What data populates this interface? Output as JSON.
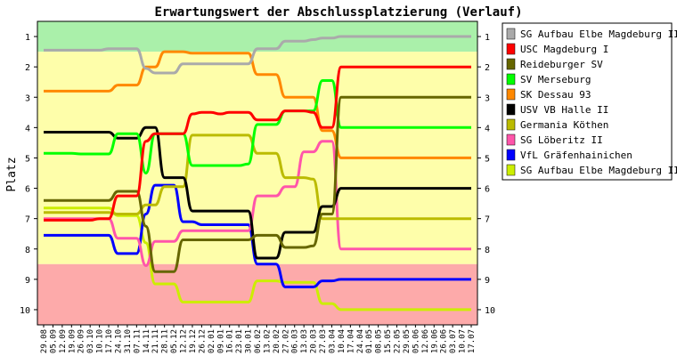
{
  "chart_data": {
    "type": "line",
    "title": "Erwartungswert der Abschlussplatzierung (Verlauf)",
    "ylabel": "Platz",
    "ylim": [
      0.5,
      10.5
    ],
    "y_inverted": true,
    "yticks": [
      1,
      2,
      3,
      4,
      5,
      6,
      7,
      8,
      9,
      10
    ],
    "bands": [
      {
        "from": 0.5,
        "to": 1.5,
        "color": "#aaf0aa"
      },
      {
        "from": 1.5,
        "to": 8.5,
        "color": "#fefeaa"
      },
      {
        "from": 8.5,
        "to": 10.5,
        "color": "#fdaaaa"
      }
    ],
    "categories": [
      "29.08",
      "05.09",
      "12.09",
      "19.09",
      "26.09",
      "03.10",
      "10.10",
      "17.10",
      "24.10",
      "31.10",
      "07.11",
      "14.11",
      "21.11",
      "28.11",
      "05.12",
      "12.12",
      "19.12",
      "26.12",
      "02.01",
      "09.01",
      "16.01",
      "23.01",
      "30.01",
      "06.02",
      "13.02",
      "20.02",
      "27.02",
      "06.03",
      "13.03",
      "20.03",
      "27.03",
      "03.04",
      "10.04",
      "17.04",
      "24.04",
      "01.05",
      "08.05",
      "15.05",
      "22.05",
      "29.05",
      "05.06",
      "12.06",
      "19.06",
      "26.06",
      "03.07",
      "10.07",
      "17.07"
    ],
    "legend": {
      "position": "right"
    },
    "series": [
      {
        "name": "SG Aufbau Elbe Magdeburg II",
        "color": "#aaaaaa",
        "values": [
          1.45,
          1.45,
          1.45,
          1.45,
          1.45,
          1.45,
          1.45,
          1.4,
          1.4,
          1.4,
          1.4,
          2.05,
          2.2,
          2.2,
          2.2,
          1.9,
          1.9,
          1.9,
          1.9,
          1.9,
          1.9,
          1.9,
          1.9,
          1.4,
          1.4,
          1.4,
          1.15,
          1.15,
          1.15,
          1.1,
          1.05,
          1.05,
          1,
          1,
          1,
          1,
          1,
          1,
          1,
          1,
          1,
          1,
          1,
          1,
          1,
          1,
          1
        ]
      },
      {
        "name": "USC Magdeburg I",
        "color": "#ff0000",
        "values": [
          7.05,
          7.05,
          7.05,
          7.05,
          7.05,
          7.05,
          7.0,
          7.0,
          6.25,
          6.25,
          6.25,
          4.45,
          4.2,
          4.2,
          4.2,
          4.2,
          3.55,
          3.5,
          3.5,
          3.55,
          3.5,
          3.5,
          3.5,
          3.75,
          3.75,
          3.75,
          3.45,
          3.45,
          3.45,
          3.5,
          4.0,
          4.0,
          2.0,
          2.0,
          2.0,
          2.0,
          2.0,
          2.0,
          2.0,
          2.0,
          2.0,
          2.0,
          2.0,
          2.0,
          2.0,
          2.0,
          2.0
        ]
      },
      {
        "name": "Reideburger SV",
        "color": "#666600",
        "values": [
          6.4,
          6.4,
          6.4,
          6.4,
          6.4,
          6.4,
          6.4,
          6.4,
          6.1,
          6.1,
          6.1,
          7.25,
          8.75,
          8.75,
          8.75,
          7.7,
          7.7,
          7.7,
          7.7,
          7.7,
          7.7,
          7.7,
          7.7,
          7.55,
          7.55,
          7.55,
          7.95,
          7.95,
          7.95,
          7.9,
          6.85,
          6.85,
          3.0,
          3.0,
          3.0,
          3.0,
          3.0,
          3.0,
          3.0,
          3.0,
          3.0,
          3.0,
          3.0,
          3.0,
          3.0,
          3.0,
          3.0
        ]
      },
      {
        "name": "SV Merseburg",
        "color": "#00ff00",
        "values": [
          4.85,
          4.85,
          4.85,
          4.85,
          4.87,
          4.87,
          4.87,
          4.87,
          4.2,
          4.2,
          4.2,
          5.5,
          4.2,
          4.2,
          4.2,
          4.2,
          5.25,
          5.25,
          5.25,
          5.25,
          5.25,
          5.25,
          5.2,
          3.9,
          3.9,
          3.9,
          3.45,
          3.45,
          3.45,
          3.45,
          2.45,
          2.45,
          4.0,
          4.0,
          4.0,
          4.0,
          4.0,
          4.0,
          4.0,
          4.0,
          4.0,
          4.0,
          4.0,
          4.0,
          4.0,
          4.0,
          4.0
        ]
      },
      {
        "name": "SK Dessau 93",
        "color": "#ff8800",
        "values": [
          2.8,
          2.8,
          2.8,
          2.8,
          2.8,
          2.8,
          2.8,
          2.8,
          2.6,
          2.6,
          2.6,
          2.0,
          2.0,
          1.5,
          1.5,
          1.5,
          1.55,
          1.55,
          1.55,
          1.55,
          1.55,
          1.55,
          1.55,
          2.25,
          2.25,
          2.25,
          3.0,
          3.0,
          3.0,
          3.0,
          4.1,
          4.1,
          5.0,
          5.0,
          5.0,
          5.0,
          5.0,
          5.0,
          5.0,
          5.0,
          5.0,
          5.0,
          5.0,
          5.0,
          5.0,
          5.0,
          5.0
        ]
      },
      {
        "name": "USV VB Halle II",
        "color": "#000000",
        "values": [
          4.15,
          4.15,
          4.15,
          4.15,
          4.15,
          4.15,
          4.15,
          4.15,
          4.35,
          4.35,
          4.35,
          4.0,
          4.0,
          5.65,
          5.65,
          5.65,
          6.75,
          6.75,
          6.75,
          6.75,
          6.75,
          6.75,
          6.75,
          8.3,
          8.3,
          8.3,
          7.45,
          7.45,
          7.45,
          7.45,
          6.6,
          6.6,
          6.0,
          6.0,
          6.0,
          6.0,
          6.0,
          6.0,
          6.0,
          6.0,
          6.0,
          6.0,
          6.0,
          6.0,
          6.0,
          6.0,
          6.0
        ]
      },
      {
        "name": "Germania Köthen",
        "color": "#bbbb00",
        "values": [
          6.8,
          6.8,
          6.8,
          6.8,
          6.8,
          6.8,
          6.8,
          6.8,
          6.85,
          6.85,
          6.85,
          6.55,
          6.55,
          5.95,
          5.95,
          5.95,
          4.25,
          4.25,
          4.25,
          4.25,
          4.25,
          4.25,
          4.25,
          4.85,
          4.85,
          4.85,
          5.65,
          5.65,
          5.65,
          5.7,
          7.0,
          7.0,
          7.0,
          7.0,
          7.0,
          7.0,
          7.0,
          7.0,
          7.0,
          7.0,
          7.0,
          7.0,
          7.0,
          7.0,
          7.0,
          7.0,
          7.0
        ]
      },
      {
        "name": "SG Löberitz II",
        "color": "#ff55aa",
        "values": [
          7.0,
          7.0,
          7.0,
          7.0,
          7.0,
          7.0,
          7.0,
          7.0,
          7.65,
          7.65,
          7.65,
          8.55,
          7.75,
          7.75,
          7.75,
          7.4,
          7.4,
          7.4,
          7.4,
          7.4,
          7.4,
          7.4,
          7.4,
          6.25,
          6.25,
          6.25,
          5.95,
          5.95,
          4.8,
          4.8,
          4.45,
          4.45,
          8.0,
          8.0,
          8.0,
          8.0,
          8.0,
          8.0,
          8.0,
          8.0,
          8.0,
          8.0,
          8.0,
          8.0,
          8.0,
          8.0,
          8.0
        ]
      },
      {
        "name": "VfL Gräfenhainichen",
        "color": "#0000ff",
        "values": [
          7.55,
          7.55,
          7.55,
          7.55,
          7.55,
          7.55,
          7.55,
          7.55,
          8.15,
          8.15,
          8.15,
          6.85,
          5.9,
          5.9,
          5.9,
          7.1,
          7.1,
          7.2,
          7.2,
          7.2,
          7.2,
          7.2,
          7.2,
          8.5,
          8.5,
          8.5,
          9.25,
          9.25,
          9.25,
          9.25,
          9.05,
          9.05,
          9.0,
          9.0,
          9.0,
          9.0,
          9.0,
          9.0,
          9.0,
          9.0,
          9.0,
          9.0,
          9.0,
          9.0,
          9.0,
          9.0,
          9.0
        ]
      },
      {
        "name": "SG Aufbau Elbe Magdeburg III",
        "color": "#ccee00",
        "values": [
          6.65,
          6.65,
          6.65,
          6.65,
          6.65,
          6.65,
          6.65,
          6.65,
          6.9,
          6.9,
          6.9,
          7.8,
          9.15,
          9.15,
          9.15,
          9.75,
          9.75,
          9.75,
          9.75,
          9.75,
          9.75,
          9.75,
          9.75,
          9.05,
          9.05,
          9.05,
          9.1,
          9.1,
          9.1,
          9.1,
          9.8,
          9.8,
          10.0,
          10.0,
          10.0,
          10.0,
          10.0,
          10.0,
          10.0,
          10.0,
          10.0,
          10.0,
          10.0,
          10.0,
          10.0,
          10.0,
          10.0
        ]
      }
    ]
  }
}
